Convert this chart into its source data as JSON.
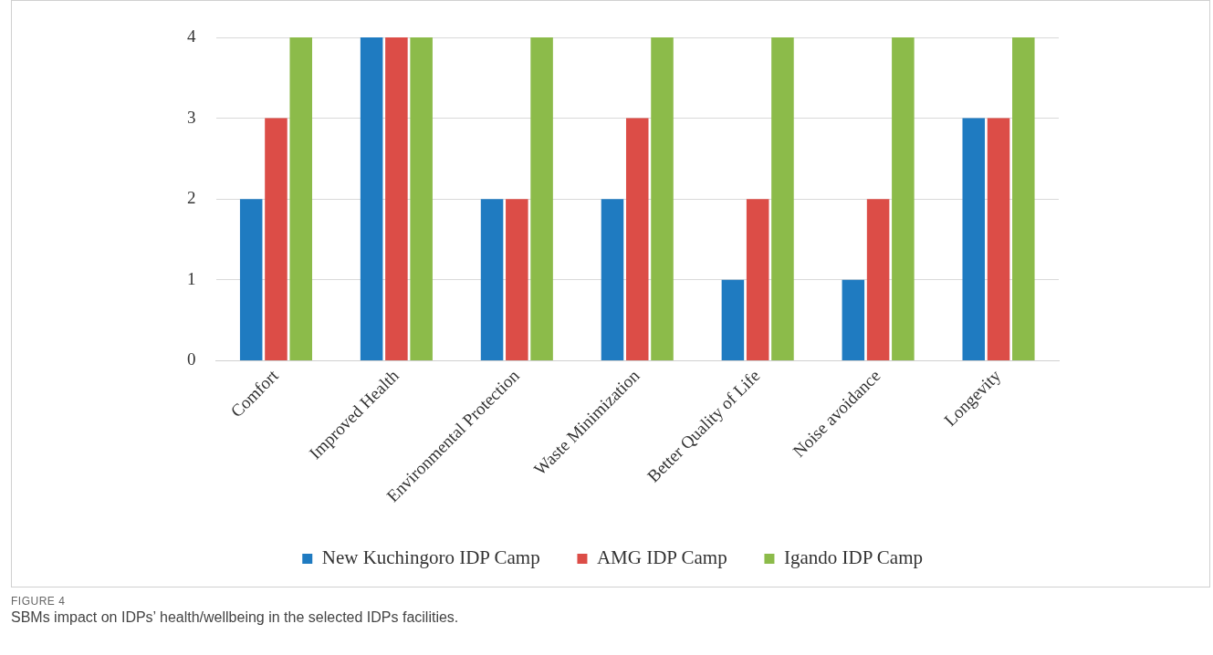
{
  "chart_data": {
    "type": "bar",
    "categories": [
      "Comfort",
      "Improved Health",
      "Environmental Protection",
      "Waste Minimization",
      "Better Quality of Life",
      "Noise avoidance",
      "Longevity"
    ],
    "series": [
      {
        "name": "New Kuchingoro IDP Camp",
        "color": "#1f7bc1",
        "values": [
          2,
          4,
          2,
          2,
          1,
          1,
          3
        ]
      },
      {
        "name": "AMG IDP Camp",
        "color": "#dc4d47",
        "values": [
          3,
          4,
          2,
          3,
          2,
          2,
          3
        ]
      },
      {
        "name": "Igando IDP Camp",
        "color": "#8cbb4a",
        "values": [
          4,
          4,
          4,
          4,
          4,
          4,
          4
        ]
      }
    ],
    "ylim": [
      0,
      4
    ],
    "yticks": [
      0,
      1,
      2,
      3,
      4
    ],
    "grid": "y",
    "legend": "bottom",
    "annotations": [
      "FIGURE 4",
      "SBMs impact on IDPs’ health/wellbeing in the selected IDPs facilities."
    ]
  }
}
